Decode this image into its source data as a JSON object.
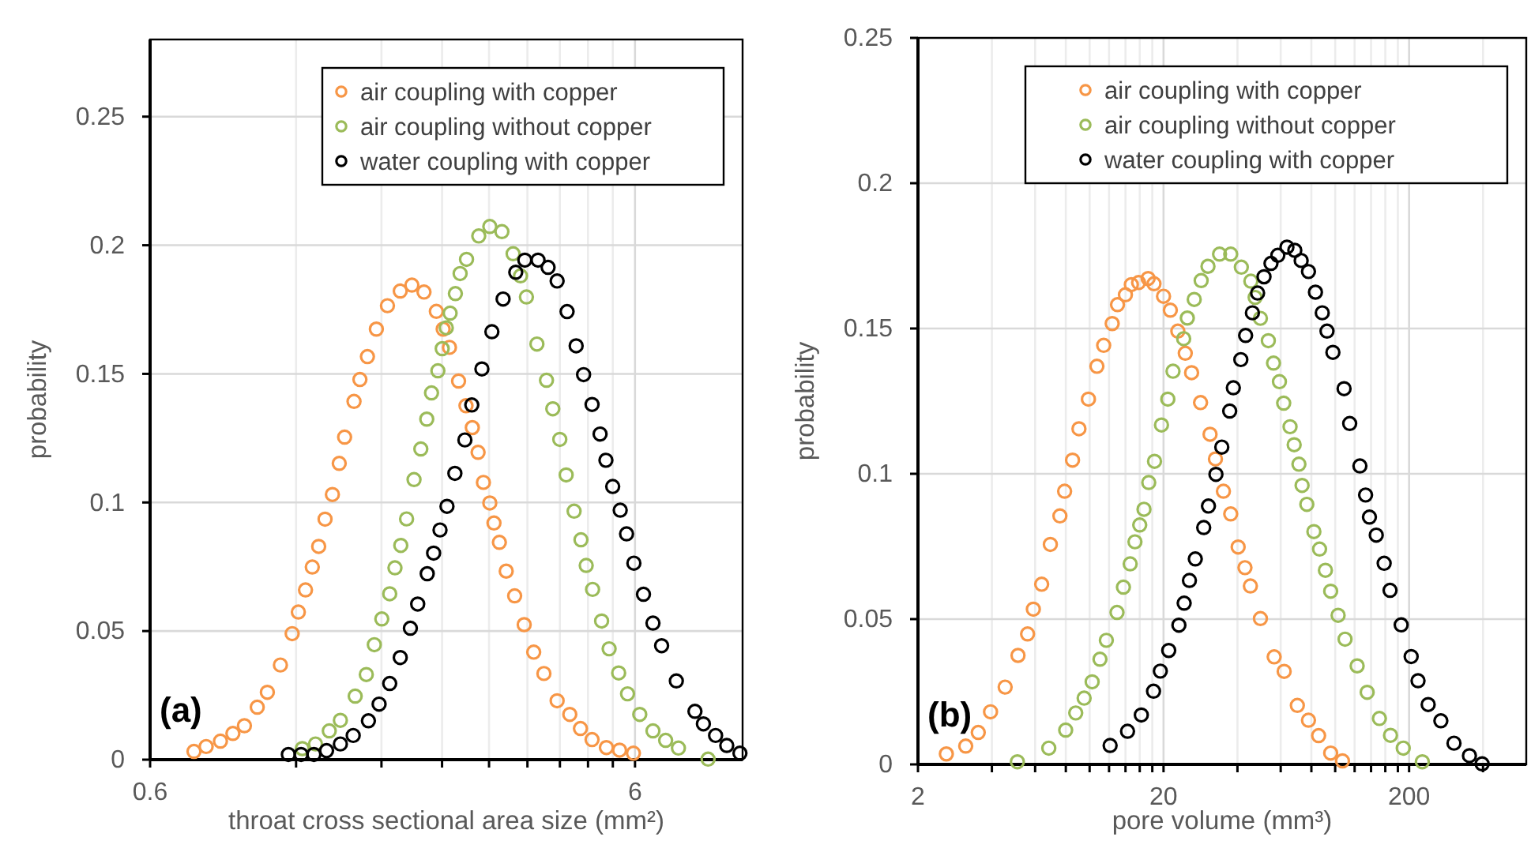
{
  "chart_data": [
    {
      "type": "scatter",
      "xlabel": "throat cross sectional area size (mm²)",
      "ylabel": "probability",
      "annotations": [
        "(a)"
      ],
      "log": "x",
      "xlim": [
        0.6,
        10
      ],
      "xticks": [
        0.6,
        {
          "value": 1.2,
          "label": null
        },
        {
          "value": 1.8,
          "label": null
        },
        {
          "value": 2.4,
          "label": null
        },
        {
          "value": 3,
          "label": null
        },
        {
          "value": 3.6,
          "label": null
        },
        {
          "value": 4.2,
          "label": null
        },
        {
          "value": 4.8,
          "label": null
        },
        {
          "value": 5.4,
          "label": null
        },
        6
      ],
      "ylim": [
        0,
        0.28
      ],
      "yticks": [
        0,
        0.05,
        0.1,
        0.15,
        0.2,
        0.25
      ],
      "grid": true,
      "legend": "top right",
      "marker": "circle",
      "series": [
        {
          "name": "air coupling with copper",
          "color": "#f79646",
          "x": [
            0.739,
            0.783,
            0.838,
            0.889,
            0.939,
            0.998,
            1.047,
            1.114,
            1.178,
            1.213,
            1.255,
            1.296,
            1.336,
            1.377,
            1.426,
            1.473,
            1.511,
            1.58,
            1.625,
            1.684,
            1.757,
            1.852,
            1.968,
            2.08,
            2.203,
            2.336,
            2.413,
            2.486,
            2.596,
            2.689,
            2.771,
            2.848,
            2.921,
            3.011,
            3.071,
            3.151,
            3.255,
            3.388,
            3.545,
            3.709,
            3.893,
            4.145,
            4.402,
            4.631,
            4.893,
            5.238,
            5.576,
            5.955
          ],
          "values": [
            0.0032,
            0.0051,
            0.0072,
            0.0102,
            0.0132,
            0.0204,
            0.0262,
            0.0368,
            0.049,
            0.0574,
            0.066,
            0.0749,
            0.0829,
            0.0935,
            0.1031,
            0.1152,
            0.1254,
            0.1393,
            0.1478,
            0.1567,
            0.1674,
            0.1765,
            0.1822,
            0.1845,
            0.1818,
            0.1743,
            0.1674,
            0.1603,
            0.1472,
            0.1376,
            0.1291,
            0.1195,
            0.1078,
            0.0998,
            0.092,
            0.0845,
            0.0733,
            0.0637,
            0.0525,
            0.0418,
            0.0335,
            0.0229,
            0.0176,
            0.0121,
            0.0078,
            0.0047,
            0.0037,
            0.0025
          ]
        },
        {
          "name": "air coupling without copper",
          "color": "#9bbb59",
          "x": [
            1.236,
            1.316,
            1.405,
            1.481,
            1.589,
            1.675,
            1.74,
            1.803,
            1.872,
            1.919,
            1.973,
            2.028,
            2.101,
            2.17,
            2.232,
            2.283,
            2.353,
            2.402,
            2.449,
            2.494,
            2.557,
            2.615,
            2.696,
            2.857,
            3.011,
            3.189,
            3.363,
            3.484,
            3.583,
            3.766,
            3.941,
            4.061,
            4.198,
            4.327,
            4.493,
            4.642,
            4.759,
            4.905,
            5.12,
            5.306,
            5.552,
            5.791,
            6.137,
            6.534,
            6.94,
            7.374,
            8.489
          ],
          "values": [
            0.0043,
            0.0061,
            0.0112,
            0.0153,
            0.0247,
            0.0331,
            0.0447,
            0.0547,
            0.0645,
            0.0746,
            0.0833,
            0.0936,
            0.1089,
            0.1208,
            0.1324,
            0.1426,
            0.1512,
            0.1598,
            0.1679,
            0.1736,
            0.1812,
            0.189,
            0.1945,
            0.2036,
            0.2073,
            0.2053,
            0.1967,
            0.1881,
            0.1799,
            0.1616,
            0.1475,
            0.1364,
            0.1245,
            0.1107,
            0.0966,
            0.0855,
            0.0755,
            0.0662,
            0.0539,
            0.0431,
            0.0337,
            0.0256,
            0.0176,
            0.0112,
            0.0075,
            0.0045,
            0.0002
          ]
        },
        {
          "name": "water coupling with copper",
          "color": "#000000",
          "x": [
            1.157,
            1.229,
            1.306,
            1.387,
            1.481,
            1.574,
            1.692,
            1.78,
            1.872,
            1.968,
            2.065,
            2.138,
            2.237,
            2.306,
            2.377,
            2.457,
            2.551,
            2.675,
            2.764,
            2.9,
            3.041,
            3.207,
            3.406,
            3.556,
            3.786,
            3.971,
            4.145,
            4.346,
            4.537,
            4.7,
            4.893,
            5.083,
            5.226,
            5.397,
            5.593,
            5.764,
            5.968,
            6.246,
            6.534,
            6.808,
            7.301,
            7.976,
            8.302,
            8.797,
            9.276,
            9.876
          ],
          "values": [
            0.002,
            0.002,
            0.002,
            0.0035,
            0.0061,
            0.0094,
            0.0151,
            0.0216,
            0.0296,
            0.0397,
            0.0511,
            0.0605,
            0.0723,
            0.0803,
            0.0893,
            0.0985,
            0.1113,
            0.1243,
            0.1379,
            0.1519,
            0.1664,
            0.1791,
            0.1895,
            0.1942,
            0.1942,
            0.1914,
            0.1861,
            0.1742,
            0.1609,
            0.1497,
            0.1381,
            0.1266,
            0.1164,
            0.1062,
            0.097,
            0.0878,
            0.0764,
            0.0643,
            0.0531,
            0.0443,
            0.0306,
            0.0188,
            0.0139,
            0.0094,
            0.0055,
            0.0025
          ]
        }
      ]
    },
    {
      "type": "scatter",
      "xlabel": "pore volume (mm³)",
      "ylabel": "probability",
      "annotations": [
        "(b)"
      ],
      "log": "x",
      "xlim": [
        2,
        600
      ],
      "xticks": [
        2,
        {
          "value": 4,
          "label": null
        },
        {
          "value": 6,
          "label": null
        },
        {
          "value": 8,
          "label": null
        },
        {
          "value": 10,
          "label": null
        },
        {
          "value": 12,
          "label": null
        },
        {
          "value": 14,
          "label": null
        },
        {
          "value": 16,
          "label": null
        },
        {
          "value": 18,
          "label": null
        },
        20,
        {
          "value": 40,
          "label": null
        },
        {
          "value": 60,
          "label": null
        },
        {
          "value": 80,
          "label": null
        },
        {
          "value": 100,
          "label": null
        },
        {
          "value": 120,
          "label": null
        },
        {
          "value": 140,
          "label": null
        },
        {
          "value": 160,
          "label": null
        },
        {
          "value": 180,
          "label": null
        },
        200,
        {
          "value": 400,
          "label": null
        }
      ],
      "ylim": [
        0,
        0.25
      ],
      "yticks": [
        0,
        0.05,
        0.1,
        0.15,
        0.2,
        0.25
      ],
      "grid": true,
      "legend": "top right",
      "marker": "circle",
      "series": [
        {
          "name": "air coupling with copper",
          "color": "#f79646",
          "x": [
            2.61,
            3.13,
            3.52,
            3.95,
            4.53,
            5.11,
            5.59,
            5.9,
            6.38,
            6.92,
            7.57,
            7.91,
            8.52,
            9.05,
            9.89,
            10.71,
            11.41,
            12.36,
            12.99,
            13.99,
            14.79,
            15.83,
            17.31,
            18.29,
            20,
            21.32,
            22.87,
            24.52,
            26.02,
            28.3,
            30.94,
            32.54,
            35.07,
            37.55,
            40.26,
            42.92,
            45.16,
            49.61,
            56.44,
            61.98,
            70.14,
            77.86,
            85.62,
            95.88,
            107.1
          ],
          "values": [
            0.0036,
            0.0063,
            0.011,
            0.0181,
            0.0266,
            0.0375,
            0.0449,
            0.0534,
            0.062,
            0.0757,
            0.0855,
            0.094,
            0.1047,
            0.1155,
            0.1257,
            0.137,
            0.1442,
            0.1517,
            0.1582,
            0.1616,
            0.1651,
            0.1658,
            0.1672,
            0.1654,
            0.1611,
            0.1563,
            0.1491,
            0.1415,
            0.1348,
            0.1245,
            0.1136,
            0.1051,
            0.094,
            0.0862,
            0.0748,
            0.0677,
            0.0614,
            0.0502,
            0.037,
            0.032,
            0.0203,
            0.0152,
            0.0099,
            0.0039,
            0.0012
          ]
        },
        {
          "name": "air coupling without copper",
          "color": "#9bbb59",
          "x": [
            5.08,
            6.82,
            7.99,
            8.78,
            9.5,
            10.24,
            11.02,
            11.7,
            12.93,
            13.73,
            14.63,
            15.3,
            16,
            16.65,
            17.41,
            18.38,
            19.62,
            20.82,
            21.86,
            24.16,
            25,
            26.67,
            28.46,
            30.34,
            33.82,
            37.55,
            41.48,
            45.36,
            47.21,
            49.61,
            53.43,
            56.1,
            59.3,
            61.71,
            65.5,
            68.08,
            71.18,
            73.32,
            76.66,
            81.9,
            86.38,
            91.26,
            95.88,
            102.8,
            109.7,
            122.9,
            135,
            151.4,
            168,
            189.3,
            226.4
          ],
          "values": [
            0.0009,
            0.0056,
            0.0118,
            0.0177,
            0.0228,
            0.0284,
            0.0362,
            0.0427,
            0.0523,
            0.061,
            0.069,
            0.0766,
            0.0824,
            0.0878,
            0.097,
            0.1043,
            0.1168,
            0.1257,
            0.1353,
            0.1465,
            0.1536,
            0.16,
            0.1665,
            0.1714,
            0.1756,
            0.1756,
            0.1711,
            0.1663,
            0.1607,
            0.1535,
            0.1458,
            0.1381,
            0.1317,
            0.1243,
            0.1162,
            0.11,
            0.1033,
            0.096,
            0.0895,
            0.0801,
            0.0741,
            0.0668,
            0.0596,
            0.0513,
            0.0431,
            0.0339,
            0.0248,
            0.0158,
            0.01,
            0.0056,
            0.0009
          ]
        },
        {
          "name": "water coupling with copper",
          "color": "#000000",
          "x": [
            12.12,
            14.27,
            16.24,
            18.21,
            19.41,
            21,
            23.1,
            24.27,
            25.5,
            26.94,
            29.15,
            30.48,
            32.69,
            34.54,
            37.2,
            38.49,
            41.29,
            43.18,
            46.02,
            48.32,
            51.31,
            54.78,
            58.41,
            63.61,
            68.48,
            72.7,
            77.86,
            83.12,
            88.6,
            92.64,
            97.89,
            108.7,
            114.6,
            126.1,
            133,
            137.9,
            147,
            158.3,
            167.3,
            185.7,
            203.9,
            217.5,
            239.2,
            269.4,
            304.7,
            352.2,
            396.7
          ],
          "values": [
            0.0065,
            0.0114,
            0.017,
            0.0252,
            0.0321,
            0.0392,
            0.0479,
            0.0555,
            0.0633,
            0.0707,
            0.0815,
            0.0889,
            0.0998,
            0.1092,
            0.1216,
            0.1296,
            0.1393,
            0.1476,
            0.1554,
            0.1622,
            0.1678,
            0.1724,
            0.1752,
            0.178,
            0.1769,
            0.1734,
            0.1696,
            0.1625,
            0.1554,
            0.1491,
            0.1418,
            0.1293,
            0.1173,
            0.1027,
            0.0927,
            0.0851,
            0.0789,
            0.0692,
            0.0599,
            0.048,
            0.0371,
            0.0288,
            0.0206,
            0.015,
            0.0073,
            0.003,
            0.0002
          ]
        }
      ]
    }
  ]
}
